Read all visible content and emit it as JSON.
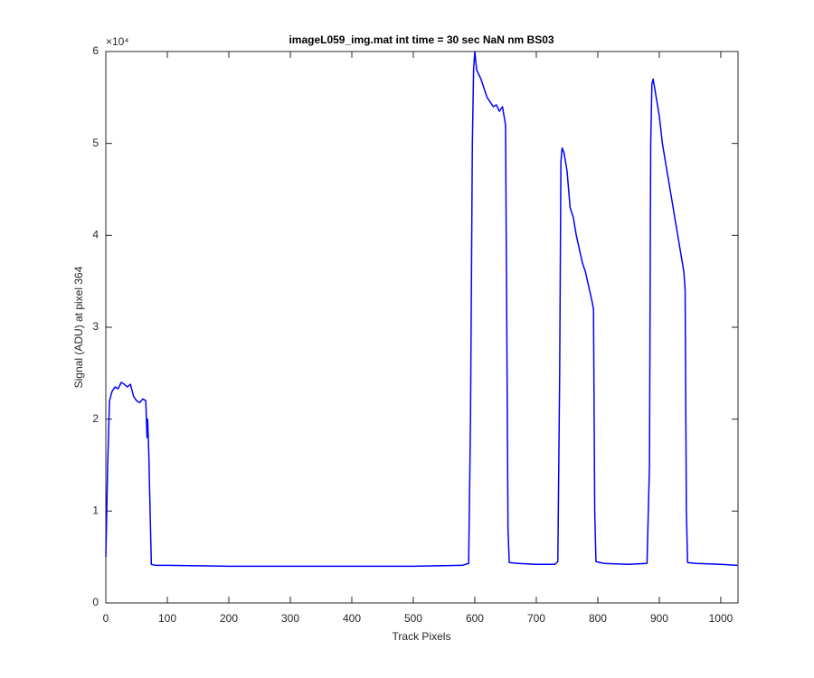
{
  "chart_data": {
    "type": "line",
    "title": "imageL059_img.mat int time = 30 sec  NaN nm BS03",
    "xlabel": "Track Pixels",
    "ylabel": "Signal (ADU) at pixel 364",
    "y_multiplier": "×10⁴",
    "color": "#0000ff",
    "xlim": [
      0,
      1028
    ],
    "xticks": [
      0,
      100,
      200,
      300,
      400,
      500,
      600,
      700,
      800,
      900,
      1000
    ],
    "ylim": [
      0,
      6
    ],
    "yticks": [
      0,
      1,
      2,
      3,
      4,
      5,
      6
    ],
    "x": [
      0,
      3,
      6,
      10,
      15,
      20,
      25,
      30,
      35,
      40,
      45,
      50,
      55,
      60,
      65,
      67,
      68,
      70,
      72,
      74,
      80,
      100,
      200,
      300,
      400,
      500,
      580,
      590,
      593,
      596,
      598,
      600,
      603,
      610,
      615,
      620,
      625,
      630,
      635,
      640,
      645,
      650,
      652,
      654,
      656,
      670,
      700,
      730,
      735,
      738,
      740,
      742,
      745,
      750,
      755,
      760,
      765,
      770,
      775,
      780,
      785,
      790,
      793,
      795,
      797,
      810,
      850,
      880,
      884,
      886,
      888,
      890,
      895,
      900,
      905,
      910,
      915,
      920,
      925,
      930,
      935,
      940,
      942,
      944,
      946,
      960,
      1000,
      1027
    ],
    "values": [
      0.5,
      1.5,
      2.2,
      2.3,
      2.35,
      2.33,
      2.4,
      2.38,
      2.35,
      2.38,
      2.25,
      2.2,
      2.18,
      2.22,
      2.2,
      1.8,
      2.0,
      1.6,
      1.0,
      0.42,
      0.41,
      0.41,
      0.4,
      0.4,
      0.4,
      0.4,
      0.41,
      0.43,
      2.0,
      5.0,
      5.8,
      6.0,
      5.8,
      5.7,
      5.6,
      5.5,
      5.45,
      5.4,
      5.42,
      5.35,
      5.4,
      5.2,
      3.0,
      0.8,
      0.44,
      0.43,
      0.42,
      0.42,
      0.45,
      2.5,
      4.8,
      4.95,
      4.9,
      4.7,
      4.3,
      4.2,
      4.0,
      3.85,
      3.7,
      3.6,
      3.45,
      3.3,
      3.2,
      1.0,
      0.45,
      0.43,
      0.42,
      0.43,
      1.5,
      5.0,
      5.65,
      5.7,
      5.5,
      5.3,
      5.0,
      4.8,
      4.6,
      4.4,
      4.2,
      4.0,
      3.8,
      3.6,
      3.4,
      1.0,
      0.44,
      0.43,
      0.42,
      0.41
    ]
  }
}
